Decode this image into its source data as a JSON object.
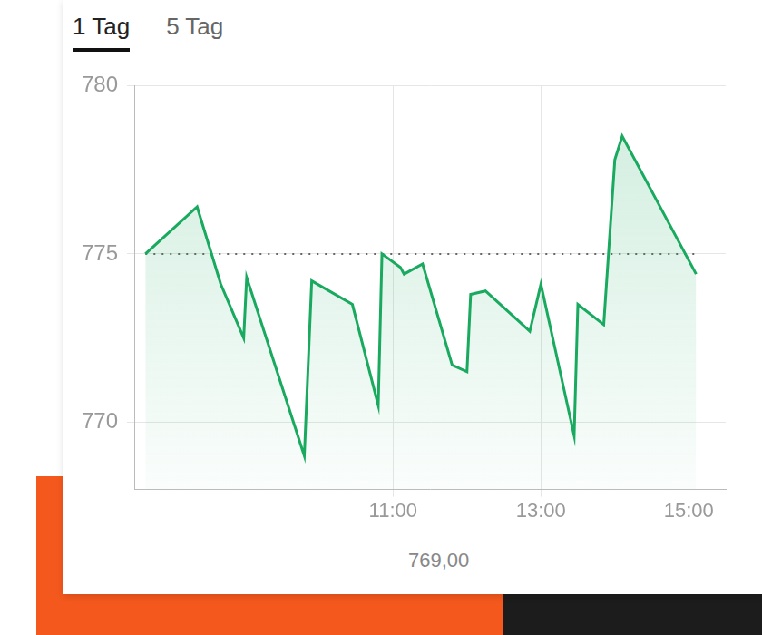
{
  "tabs": [
    "1 Tag",
    "5 Tag"
  ],
  "chart_data": {
    "type": "line",
    "x": [
      7.65,
      8.35,
      8.67,
      8.98,
      9.02,
      9.8,
      9.9,
      10.45,
      10.8,
      10.85,
      11.1,
      11.15,
      11.4,
      11.8,
      12.0,
      12.05,
      12.25,
      12.85,
      13.0,
      13.45,
      13.5,
      13.85,
      14.0,
      14.1,
      15.1
    ],
    "series": [
      {
        "color": "#19a95f",
        "marker": "none",
        "values": [
          775.0,
          776.4,
          774.1,
          772.5,
          774.3,
          769.0,
          774.2,
          773.5,
          770.5,
          775.0,
          774.6,
          774.4,
          774.7,
          771.7,
          771.5,
          773.8,
          773.9,
          772.7,
          774.1,
          769.6,
          773.5,
          772.9,
          777.8,
          778.5,
          774.4
        ]
      },
      {
        "color": "#666666",
        "marker": "none",
        "line_style": "dotted",
        "values": [
          775.0,
          775.0,
          775.0,
          775.0,
          775.0,
          775.0,
          775.0,
          775.0,
          775.0,
          775.0,
          775.0,
          775.0,
          775.0,
          775.0,
          775.0,
          775.0,
          775.0,
          775.0,
          775.0,
          775.0,
          775.0,
          775.0,
          775.0,
          775.0,
          775.0
        ]
      }
    ],
    "xlim": [
      7.5,
      15.5
    ],
    "xticks": [
      {
        "value": 11,
        "label": "11:00"
      },
      {
        "value": 13,
        "label": "13:00"
      },
      {
        "value": 15,
        "label": "15:00"
      }
    ],
    "ylim": [
      768,
      780
    ],
    "yticks": [
      770,
      775,
      780
    ],
    "grid": true,
    "annotations": [
      "769,00"
    ]
  }
}
